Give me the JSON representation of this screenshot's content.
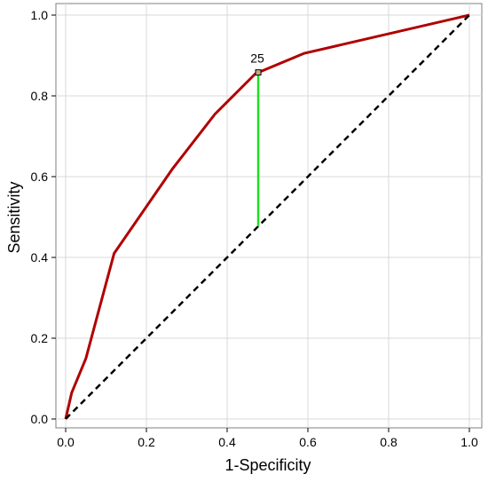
{
  "chart_data": {
    "type": "line",
    "title": "",
    "xlabel": "1-Specificity",
    "ylabel": "Sensitivity",
    "xlim": [
      0,
      1
    ],
    "ylim": [
      0,
      1
    ],
    "grid": true,
    "x_ticks": [
      "0.0",
      "0.2",
      "0.4",
      "0.6",
      "0.8",
      "1.0"
    ],
    "y_ticks": [
      "0.0",
      "0.2",
      "0.4",
      "0.6",
      "0.8",
      "1.0"
    ],
    "series": [
      {
        "color": "#b00000",
        "style": "solid",
        "points": [
          [
            0.0,
            0.0
          ],
          [
            0.015,
            0.065
          ],
          [
            0.05,
            0.15
          ],
          [
            0.12,
            0.41
          ],
          [
            0.265,
            0.62
          ],
          [
            0.37,
            0.755
          ],
          [
            0.47,
            0.855
          ],
          [
            0.59,
            0.905
          ],
          [
            1.0,
            1.0
          ]
        ]
      },
      {
        "color": "#000000",
        "style": "dashed",
        "points": [
          [
            0.0,
            0.0
          ],
          [
            1.0,
            1.0
          ]
        ]
      }
    ],
    "annotation": {
      "label": "25",
      "point": [
        0.477,
        0.858
      ],
      "vline_from": 0.477,
      "vline_to_y": 0.477,
      "vline_color": "#22dd22",
      "marker_color": "#c8a882"
    }
  }
}
